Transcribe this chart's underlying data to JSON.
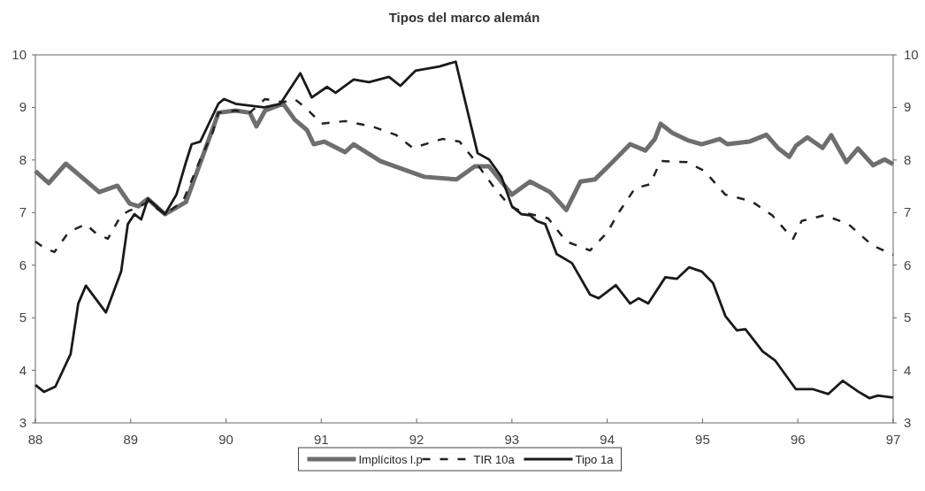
{
  "chart_data": {
    "type": "line",
    "title": "Tipos del marco alemán",
    "xlim": [
      88,
      97
    ],
    "xticks": [
      88,
      89,
      90,
      91,
      92,
      93,
      94,
      95,
      96,
      97
    ],
    "ylim": [
      3,
      10
    ],
    "yticks": [
      3,
      4,
      5,
      6,
      7,
      8,
      9,
      10
    ],
    "y2lim": [
      3,
      10
    ],
    "y2ticks": [
      3,
      4,
      5,
      6,
      7,
      8,
      9,
      10
    ],
    "legend": "bottom",
    "grid": false,
    "marker": "none",
    "series": [
      {
        "name": "Implícitos l.p",
        "color": "#6e6e6e",
        "line_style": "solid",
        "x": [
          88.0,
          88.14,
          88.32,
          88.67,
          88.86,
          88.99,
          89.08,
          89.18,
          89.36,
          89.58,
          89.88,
          89.92,
          90.1,
          90.25,
          90.32,
          90.41,
          90.6,
          90.72,
          90.85,
          90.92,
          91.03,
          91.25,
          91.34,
          91.62,
          92.08,
          92.42,
          92.61,
          92.76,
          93.0,
          93.19,
          93.4,
          93.57,
          93.72,
          93.87,
          94.05,
          94.24,
          94.4,
          94.5,
          94.56,
          94.68,
          94.84,
          94.99,
          95.18,
          95.26,
          95.49,
          95.67,
          95.79,
          95.91,
          95.98,
          96.1,
          96.26,
          96.35,
          96.51,
          96.63,
          96.79,
          96.91,
          97.0
        ],
        "values": [
          7.79,
          7.56,
          7.93,
          7.39,
          7.51,
          7.17,
          7.12,
          7.26,
          6.97,
          7.2,
          8.69,
          8.9,
          8.94,
          8.9,
          8.64,
          8.94,
          9.07,
          8.77,
          8.57,
          8.3,
          8.35,
          8.15,
          8.3,
          7.98,
          7.68,
          7.63,
          7.88,
          7.88,
          7.34,
          7.59,
          7.39,
          7.05,
          7.59,
          7.63,
          7.95,
          8.3,
          8.18,
          8.4,
          8.69,
          8.52,
          8.38,
          8.3,
          8.4,
          8.3,
          8.35,
          8.48,
          8.23,
          8.06,
          8.27,
          8.43,
          8.23,
          8.47,
          7.96,
          8.22,
          7.9,
          8.01,
          7.92
        ]
      },
      {
        "name": "TIR 10a",
        "color": "#222222",
        "line_style": "dashed",
        "x": [
          88.0,
          88.09,
          88.2,
          88.35,
          88.53,
          88.62,
          88.76,
          88.9,
          88.99,
          89.08,
          89.18,
          89.36,
          89.55,
          89.73,
          89.86,
          89.92,
          90.1,
          90.25,
          90.41,
          90.6,
          90.72,
          90.85,
          91.0,
          91.25,
          91.53,
          91.78,
          91.96,
          92.27,
          92.45,
          92.58,
          92.8,
          92.98,
          93.13,
          93.38,
          93.57,
          93.82,
          94.0,
          94.12,
          94.29,
          94.45,
          94.56,
          94.84,
          95.02,
          95.24,
          95.51,
          95.73,
          95.95,
          96.04,
          96.28,
          96.53,
          96.78,
          96.9,
          97.0
        ],
        "values": [
          6.45,
          6.33,
          6.25,
          6.63,
          6.78,
          6.63,
          6.5,
          6.95,
          7.04,
          7.1,
          7.2,
          6.97,
          7.22,
          8.01,
          8.52,
          8.9,
          8.94,
          8.9,
          9.16,
          9.1,
          9.16,
          8.97,
          8.69,
          8.74,
          8.64,
          8.48,
          8.23,
          8.4,
          8.35,
          8.06,
          7.51,
          7.12,
          7.0,
          6.89,
          6.45,
          6.28,
          6.62,
          7.0,
          7.46,
          7.54,
          7.98,
          7.96,
          7.79,
          7.34,
          7.22,
          6.95,
          6.5,
          6.84,
          6.95,
          6.78,
          6.38,
          6.28,
          6.2
        ]
      },
      {
        "name": "Tipo 1a",
        "color": "#1a1a1a",
        "line_style": "solid",
        "x": [
          88.0,
          88.09,
          88.21,
          88.37,
          88.45,
          88.53,
          88.74,
          88.9,
          88.97,
          89.04,
          89.11,
          89.18,
          89.36,
          89.48,
          89.58,
          89.64,
          89.73,
          89.92,
          89.98,
          90.1,
          90.4,
          90.57,
          90.78,
          90.9,
          91.06,
          91.15,
          91.34,
          91.5,
          91.71,
          91.83,
          91.99,
          92.24,
          92.41,
          92.64,
          92.76,
          92.89,
          93.0,
          93.1,
          93.19,
          93.26,
          93.35,
          93.47,
          93.63,
          93.82,
          93.91,
          94.09,
          94.24,
          94.33,
          94.43,
          94.61,
          94.73,
          94.86,
          94.99,
          95.11,
          95.24,
          95.36,
          95.45,
          95.63,
          95.76,
          95.98,
          96.16,
          96.32,
          96.47,
          96.63,
          96.75,
          96.84,
          97.0
        ],
        "values": [
          3.72,
          3.59,
          3.69,
          4.31,
          5.27,
          5.61,
          5.1,
          5.88,
          6.78,
          6.97,
          6.87,
          7.26,
          6.97,
          7.34,
          7.96,
          8.3,
          8.35,
          9.07,
          9.16,
          9.07,
          9.0,
          9.07,
          9.65,
          9.19,
          9.39,
          9.28,
          9.53,
          9.48,
          9.58,
          9.41,
          9.7,
          9.78,
          9.87,
          8.13,
          8.01,
          7.68,
          7.12,
          6.97,
          6.95,
          6.84,
          6.78,
          6.21,
          6.04,
          5.44,
          5.37,
          5.62,
          5.27,
          5.37,
          5.27,
          5.77,
          5.74,
          5.96,
          5.88,
          5.66,
          5.03,
          4.76,
          4.78,
          4.36,
          4.19,
          3.64,
          3.64,
          3.55,
          3.8,
          3.6,
          3.47,
          3.52,
          3.48
        ]
      }
    ]
  }
}
